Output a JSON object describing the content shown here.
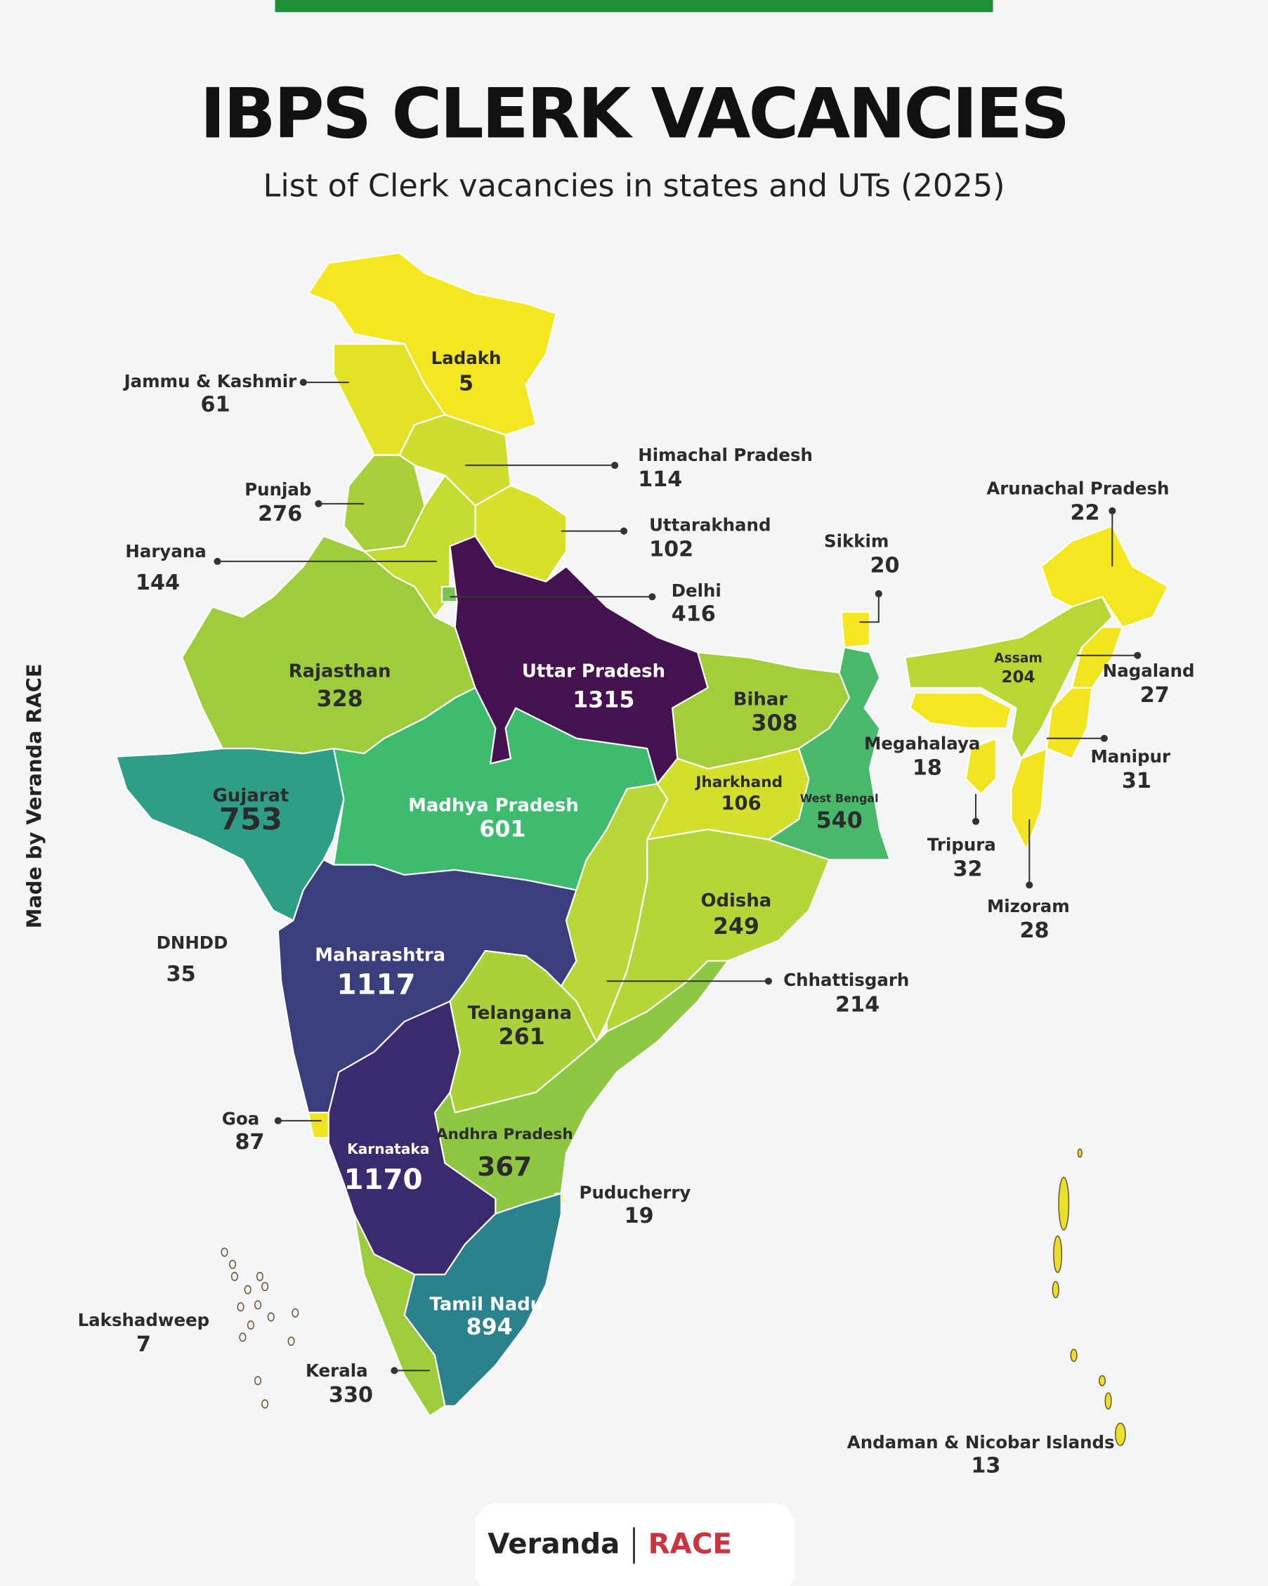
{
  "header": {
    "title": "IBPS CLERK VACANCIES",
    "subtitle": "List of Clerk vacancies in states and UTs (2025)"
  },
  "credit": "Made by Veranda RACE",
  "regions": [
    {
      "name": "Ladakh",
      "value": 5,
      "color": "#f4e61f"
    },
    {
      "name": "Jammu & Kashmir",
      "value": 61,
      "color": "#e3e226"
    },
    {
      "name": "Himachal Pradesh",
      "value": 114,
      "color": "#cfdd2e"
    },
    {
      "name": "Punjab",
      "value": 276,
      "color": "#a9d03b"
    },
    {
      "name": "Uttarakhand",
      "value": 102,
      "color": "#d9e02a"
    },
    {
      "name": "Haryana",
      "value": 144,
      "color": "#c4db32"
    },
    {
      "name": "Delhi",
      "value": 416,
      "color": "#7cc552"
    },
    {
      "name": "Rajasthan",
      "value": 328,
      "color": "#9dcc3d"
    },
    {
      "name": "Uttar Pradesh",
      "value": 1315,
      "color": "#45114f"
    },
    {
      "name": "Bihar",
      "value": 308,
      "color": "#a3ce3a"
    },
    {
      "name": "Sikkim",
      "value": 20,
      "color": "#f4e61f"
    },
    {
      "name": "Arunachal Pradesh",
      "value": 22,
      "color": "#f4e61f"
    },
    {
      "name": "Assam",
      "value": 204,
      "color": "#b8d735"
    },
    {
      "name": "Nagaland",
      "value": 27,
      "color": "#f2e520"
    },
    {
      "name": "Megahalaya",
      "value": 18,
      "color": "#f4e61f"
    },
    {
      "name": "Manipur",
      "value": 31,
      "color": "#f1e521"
    },
    {
      "name": "Tripura",
      "value": 32,
      "color": "#f1e521"
    },
    {
      "name": "Mizoram",
      "value": 28,
      "color": "#f2e520"
    },
    {
      "name": "Gujarat",
      "value": 753,
      "color": "#2e9f86"
    },
    {
      "name": "Madhya Pradesh",
      "value": 601,
      "color": "#3fbb70"
    },
    {
      "name": "Jharkhand",
      "value": 106,
      "color": "#d2df2c"
    },
    {
      "name": "West Bengal",
      "value": 540,
      "color": "#48b96a"
    },
    {
      "name": "Odisha",
      "value": 249,
      "color": "#b4d637"
    },
    {
      "name": "DNHDD",
      "value": 35
    },
    {
      "name": "Maharashtra",
      "value": 1117,
      "color": "#3a3f7c"
    },
    {
      "name": "Chhattisgarh",
      "value": 214,
      "color": "#b9d736"
    },
    {
      "name": "Telangana",
      "value": 261,
      "color": "#abd13a"
    },
    {
      "name": "Goa",
      "value": 87,
      "color": "#f0e41f"
    },
    {
      "name": "Andhra Pradesh",
      "value": 367,
      "color": "#8ec742"
    },
    {
      "name": "Karnataka",
      "value": 1170,
      "color": "#3b2b6e"
    },
    {
      "name": "Puducherry",
      "value": 19,
      "color": "#f4e61f"
    },
    {
      "name": "Tamil Nadu",
      "value": 894,
      "color": "#2a838c"
    },
    {
      "name": "Lakshadweep",
      "value": 7
    },
    {
      "name": "Kerala",
      "value": 330,
      "color": "#9dcc3d"
    },
    {
      "name": "Andaman & Nicobar Islands",
      "value": 13,
      "color": "#e8e12a"
    }
  ],
  "logo": {
    "brand": "Veranda",
    "partner": "RACE"
  }
}
